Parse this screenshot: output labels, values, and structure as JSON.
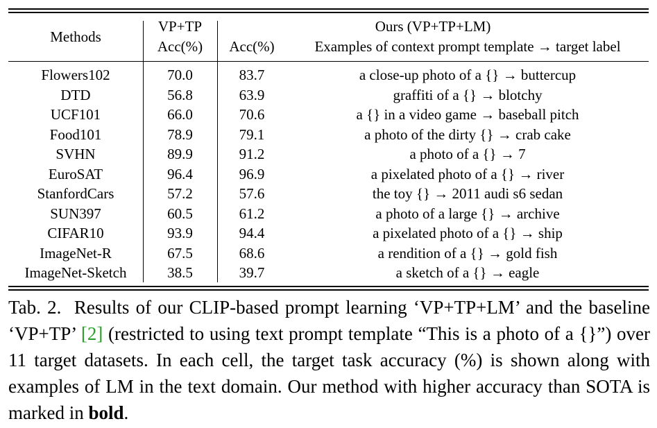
{
  "table": {
    "header": {
      "methods": "Methods",
      "baseline_group": "VP+TP",
      "baseline_acc": "Acc(%)",
      "ours_group": "Ours (VP+TP+LM)",
      "ours_acc": "Acc(%)",
      "examples": "Examples of context prompt template → target label"
    },
    "rows": [
      {
        "dataset": "Flowers102",
        "baseline": "70.0",
        "ours": "83.7",
        "example": "a close-up photo of a {} → buttercup"
      },
      {
        "dataset": "DTD",
        "baseline": "56.8",
        "ours": "63.9",
        "example": "graffiti of a {} → blotchy"
      },
      {
        "dataset": "UCF101",
        "baseline": "66.0",
        "ours": "70.6",
        "example": "a {} in a video game → baseball pitch"
      },
      {
        "dataset": "Food101",
        "baseline": "78.9",
        "ours": "79.1",
        "example": "a photo of the dirty {} → crab cake"
      },
      {
        "dataset": "SVHN",
        "baseline": "89.9",
        "ours": "91.2",
        "example": "a photo of a {} → 7"
      },
      {
        "dataset": "EuroSAT",
        "baseline": "96.4",
        "ours": "96.9",
        "example": "a pixelated photo of a {} → river"
      },
      {
        "dataset": "StanfordCars",
        "baseline": "57.2",
        "ours": "57.6",
        "example": "the toy {} → 2011 audi s6 sedan"
      },
      {
        "dataset": "SUN397",
        "baseline": "60.5",
        "ours": "61.2",
        "example": "a photo of a large {} → archive"
      },
      {
        "dataset": "CIFAR10",
        "baseline": "93.9",
        "ours": "94.4",
        "example": "a pixelated photo of a {} → ship"
      },
      {
        "dataset": "ImageNet-R",
        "baseline": "67.5",
        "ours": "68.6",
        "example": "a rendition of a {} → gold fish"
      },
      {
        "dataset": "ImageNet-Sketch",
        "baseline": "38.5",
        "ours": "39.7",
        "example": "a sketch of a {} → eagle"
      }
    ]
  },
  "caption": {
    "label": "Tab. 2.",
    "text_1": "Results of our CLIP-based prompt learning ‘VP+TP+LM’ and the baseline ‘VP+TP’ ",
    "cite": "[2]",
    "text_2": " (restricted to using text prompt template “This is a photo of a {}”) over 11 target datasets. In each cell, the target task accuracy (%) is shown along with examples of LM in the text domain. Our method with higher accuracy than SOTA is marked in ",
    "bold_word": "bold",
    "text_3": ".",
    "cite_color": "#2ca02c"
  }
}
